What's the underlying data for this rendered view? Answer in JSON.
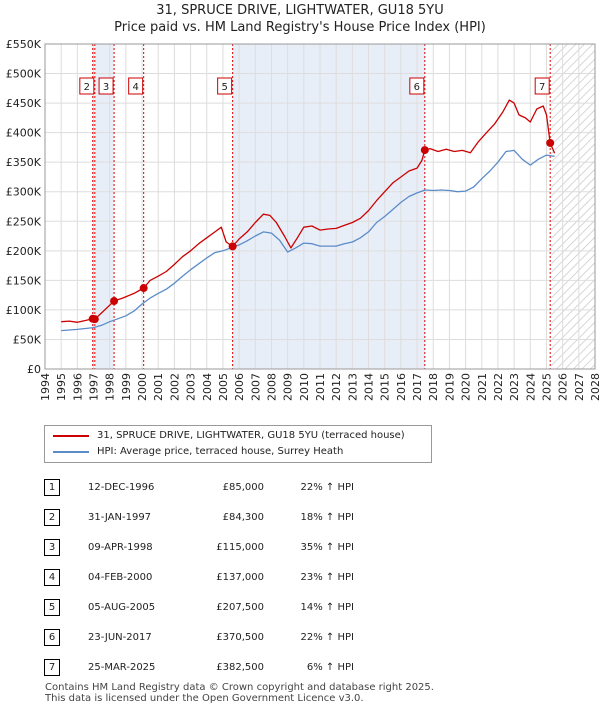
{
  "title_line1": "31, SPRUCE DRIVE, LIGHTWATER, GU18 5YU",
  "title_line2": "Price paid vs. HM Land Registry's House Price Index (HPI)",
  "chart_data": {
    "type": "line",
    "title": "31, SPRUCE DRIVE, LIGHTWATER, GU18 5YU — Price paid vs. HM Land Registry's House Price Index (HPI)",
    "xlim": [
      1994,
      2028
    ],
    "ylim": [
      0,
      550000
    ],
    "x_ticks": [
      "1994",
      "1995",
      "1996",
      "1997",
      "1998",
      "1999",
      "2000",
      "2001",
      "2002",
      "2003",
      "2004",
      "2005",
      "2006",
      "2007",
      "2008",
      "2009",
      "2010",
      "2011",
      "2012",
      "2013",
      "2014",
      "2015",
      "2016",
      "2017",
      "2018",
      "2019",
      "2020",
      "2021",
      "2022",
      "2023",
      "2024",
      "2025",
      "2026",
      "2027",
      "2028"
    ],
    "y_ticks": [
      {
        "value": 0,
        "label": "£0"
      },
      {
        "value": 50000,
        "label": "£50K"
      },
      {
        "value": 100000,
        "label": "£100K"
      },
      {
        "value": 150000,
        "label": "£150K"
      },
      {
        "value": 200000,
        "label": "£200K"
      },
      {
        "value": 250000,
        "label": "£250K"
      },
      {
        "value": 300000,
        "label": "£300K"
      },
      {
        "value": 350000,
        "label": "£350K"
      },
      {
        "value": 400000,
        "label": "£400K"
      },
      {
        "value": 450000,
        "label": "£450K"
      },
      {
        "value": 500000,
        "label": "£500K"
      },
      {
        "value": 550000,
        "label": "£550K"
      }
    ],
    "grid": true,
    "hatched_future_from": 2025.3,
    "series": [
      {
        "name": "31, SPRUCE DRIVE, LIGHTWATER, GU18 5YU (terraced house)",
        "color": "#cc0000",
        "points": [
          [
            1995.0,
            80000
          ],
          [
            1995.5,
            81000
          ],
          [
            1996.0,
            79000
          ],
          [
            1996.5,
            82000
          ],
          [
            1996.95,
            85000
          ],
          [
            1997.08,
            84300
          ],
          [
            1997.5,
            95000
          ],
          [
            1998.0,
            108000
          ],
          [
            1998.27,
            115000
          ],
          [
            1998.8,
            120000
          ],
          [
            1999.5,
            128000
          ],
          [
            2000.1,
            137000
          ],
          [
            2000.5,
            150000
          ],
          [
            2001.0,
            157000
          ],
          [
            2001.5,
            165000
          ],
          [
            2002.0,
            177000
          ],
          [
            2002.5,
            190000
          ],
          [
            2003.0,
            200000
          ],
          [
            2003.5,
            212000
          ],
          [
            2004.0,
            222000
          ],
          [
            2004.5,
            232000
          ],
          [
            2004.9,
            240000
          ],
          [
            2005.2,
            215000
          ],
          [
            2005.6,
            207500
          ],
          [
            2006.0,
            220000
          ],
          [
            2006.5,
            232000
          ],
          [
            2007.0,
            248000
          ],
          [
            2007.5,
            262000
          ],
          [
            2007.9,
            260000
          ],
          [
            2008.3,
            248000
          ],
          [
            2008.8,
            225000
          ],
          [
            2009.2,
            205000
          ],
          [
            2009.6,
            222000
          ],
          [
            2010.0,
            240000
          ],
          [
            2010.5,
            242000
          ],
          [
            2011.0,
            235000
          ],
          [
            2011.5,
            237000
          ],
          [
            2012.0,
            238000
          ],
          [
            2012.5,
            243000
          ],
          [
            2013.0,
            248000
          ],
          [
            2013.5,
            255000
          ],
          [
            2014.0,
            268000
          ],
          [
            2014.5,
            285000
          ],
          [
            2015.0,
            300000
          ],
          [
            2015.5,
            315000
          ],
          [
            2016.0,
            325000
          ],
          [
            2016.5,
            335000
          ],
          [
            2017.0,
            340000
          ],
          [
            2017.3,
            353000
          ],
          [
            2017.48,
            370500
          ],
          [
            2017.8,
            373000
          ],
          [
            2018.3,
            368000
          ],
          [
            2018.8,
            372000
          ],
          [
            2019.3,
            368000
          ],
          [
            2019.8,
            370000
          ],
          [
            2020.3,
            366000
          ],
          [
            2020.8,
            385000
          ],
          [
            2021.3,
            400000
          ],
          [
            2021.8,
            415000
          ],
          [
            2022.3,
            435000
          ],
          [
            2022.7,
            455000
          ],
          [
            2023.0,
            450000
          ],
          [
            2023.3,
            430000
          ],
          [
            2023.7,
            425000
          ],
          [
            2024.0,
            418000
          ],
          [
            2024.4,
            440000
          ],
          [
            2024.8,
            445000
          ],
          [
            2025.0,
            430000
          ],
          [
            2025.23,
            382500
          ],
          [
            2025.5,
            365000
          ]
        ]
      },
      {
        "name": "HPI: Average price, terraced house, Surrey Heath",
        "color": "#5b8cc8",
        "points": [
          [
            1995.0,
            65000
          ],
          [
            1995.5,
            66000
          ],
          [
            1996.0,
            67000
          ],
          [
            1996.5,
            68500
          ],
          [
            1997.0,
            70000
          ],
          [
            1997.5,
            74000
          ],
          [
            1998.0,
            80000
          ],
          [
            1998.5,
            85000
          ],
          [
            1999.0,
            90000
          ],
          [
            1999.5,
            98000
          ],
          [
            2000.0,
            110000
          ],
          [
            2000.5,
            120000
          ],
          [
            2001.0,
            128000
          ],
          [
            2001.5,
            135000
          ],
          [
            2002.0,
            145000
          ],
          [
            2002.5,
            157000
          ],
          [
            2003.0,
            168000
          ],
          [
            2003.5,
            178000
          ],
          [
            2004.0,
            188000
          ],
          [
            2004.5,
            197000
          ],
          [
            2005.0,
            200000
          ],
          [
            2005.5,
            205000
          ],
          [
            2006.0,
            210000
          ],
          [
            2006.5,
            217000
          ],
          [
            2007.0,
            225000
          ],
          [
            2007.5,
            232000
          ],
          [
            2008.0,
            230000
          ],
          [
            2008.5,
            218000
          ],
          [
            2009.0,
            198000
          ],
          [
            2009.5,
            205000
          ],
          [
            2010.0,
            213000
          ],
          [
            2010.5,
            212000
          ],
          [
            2011.0,
            208000
          ],
          [
            2011.5,
            208000
          ],
          [
            2012.0,
            208000
          ],
          [
            2012.5,
            212000
          ],
          [
            2013.0,
            215000
          ],
          [
            2013.5,
            222000
          ],
          [
            2014.0,
            232000
          ],
          [
            2014.5,
            248000
          ],
          [
            2015.0,
            258000
          ],
          [
            2015.5,
            270000
          ],
          [
            2016.0,
            282000
          ],
          [
            2016.5,
            292000
          ],
          [
            2017.0,
            298000
          ],
          [
            2017.5,
            303000
          ],
          [
            2018.0,
            302000
          ],
          [
            2018.5,
            303000
          ],
          [
            2019.0,
            302000
          ],
          [
            2019.5,
            300000
          ],
          [
            2020.0,
            301000
          ],
          [
            2020.5,
            308000
          ],
          [
            2021.0,
            322000
          ],
          [
            2021.5,
            335000
          ],
          [
            2022.0,
            350000
          ],
          [
            2022.5,
            368000
          ],
          [
            2023.0,
            370000
          ],
          [
            2023.5,
            355000
          ],
          [
            2024.0,
            345000
          ],
          [
            2024.5,
            355000
          ],
          [
            2025.0,
            362000
          ],
          [
            2025.5,
            360000
          ]
        ]
      }
    ],
    "markers": [
      {
        "label": "1",
        "x": 1996.95,
        "y": 85000
      },
      {
        "label": "2",
        "x": 1997.08,
        "y": 84300
      },
      {
        "label": "3",
        "x": 1998.27,
        "y": 115000
      },
      {
        "label": "4",
        "x": 2000.1,
        "y": 137000
      },
      {
        "label": "5",
        "x": 2005.6,
        "y": 207500
      },
      {
        "label": "6",
        "x": 2017.48,
        "y": 370500
      },
      {
        "label": "7",
        "x": 2025.23,
        "y": 382500
      }
    ],
    "marker_boxes_shown": [
      "2",
      "3",
      "4",
      "5",
      "6",
      "7"
    ],
    "shaded_spans": [
      [
        1997.08,
        1998.27
      ],
      [
        2005.6,
        2017.48
      ]
    ]
  },
  "legend": [
    {
      "label": "31, SPRUCE DRIVE, LIGHTWATER, GU18 5YU (terraced house)",
      "color": "#cc0000"
    },
    {
      "label": "HPI: Average price, terraced house, Surrey Heath",
      "color": "#5b8cc8"
    }
  ],
  "sales": [
    {
      "num": "1",
      "date": "12-DEC-1996",
      "price": "£85,000",
      "hpi": "22% ↑ HPI"
    },
    {
      "num": "2",
      "date": "31-JAN-1997",
      "price": "£84,300",
      "hpi": "18% ↑ HPI"
    },
    {
      "num": "3",
      "date": "09-APR-1998",
      "price": "£115,000",
      "hpi": "35% ↑ HPI"
    },
    {
      "num": "4",
      "date": "04-FEB-2000",
      "price": "£137,000",
      "hpi": "23% ↑ HPI"
    },
    {
      "num": "5",
      "date": "05-AUG-2005",
      "price": "£207,500",
      "hpi": "14% ↑ HPI"
    },
    {
      "num": "6",
      "date": "23-JUN-2017",
      "price": "£370,500",
      "hpi": "22% ↑ HPI"
    },
    {
      "num": "7",
      "date": "25-MAR-2025",
      "price": "£382,500",
      "hpi": "6% ↑ HPI"
    }
  ],
  "footer_line1": "Contains HM Land Registry data © Crown copyright and database right 2025.",
  "footer_line2": "This data is licensed under the Open Government Licence v3.0."
}
